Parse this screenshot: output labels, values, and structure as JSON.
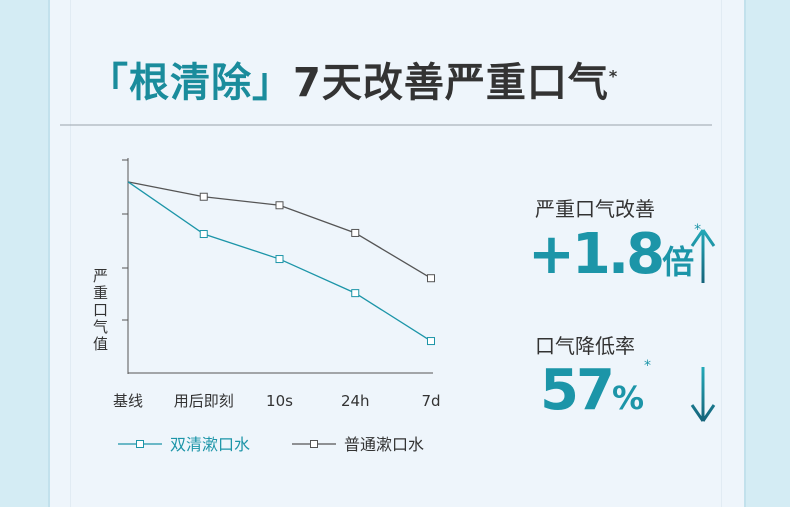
{
  "header": {
    "title_highlight": "「根清除」",
    "title": "7天改善严重口气",
    "title_mark": "*"
  },
  "chart_data": {
    "type": "line",
    "y_label": "严重口气值",
    "categories": [
      "基线",
      "用后即刻",
      "10s",
      "24h",
      "7d"
    ],
    "ylim": [
      0,
      4
    ],
    "series": [
      {
        "name": "双清漱口水",
        "color": "#1c95a8",
        "values": [
          3.59,
          2.61,
          2.14,
          1.5,
          0.6
        ],
        "area": true
      },
      {
        "name": "普通漱口水",
        "color": "#555555",
        "values": [
          3.59,
          3.31,
          3.15,
          2.63,
          1.78
        ]
      }
    ]
  },
  "stats": [
    {
      "label": "严重口气改善",
      "value": "+1.8",
      "unit": "倍",
      "mark": "*"
    },
    {
      "label": "口气降低率",
      "value": "57",
      "unit": "%",
      "mark": "*"
    }
  ]
}
